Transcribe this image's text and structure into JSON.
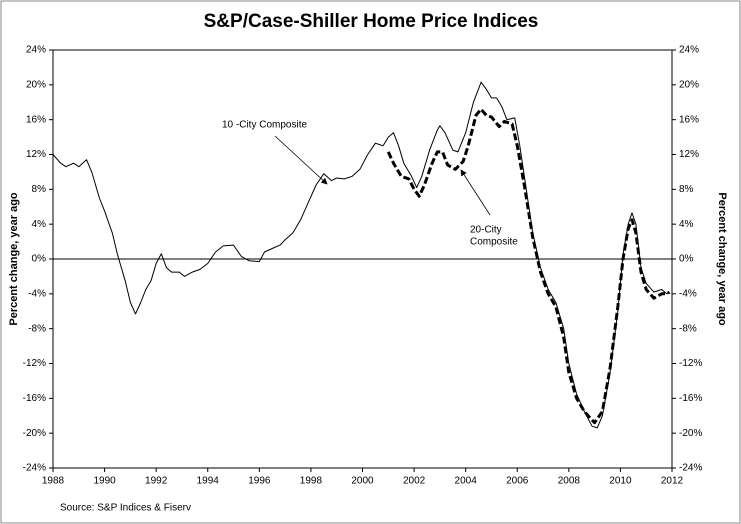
{
  "chart_data": {
    "type": "line",
    "title": "S&P/Case-Shiller Home Price Indices",
    "ylabel": "Percent change, year ago",
    "y2label": "Percent change, year ago",
    "source": "Source: S&P Indices & Fiserv",
    "annotations": [
      {
        "text": [
          "10 -City Composite"
        ]
      },
      {
        "text": [
          "20-City",
          "Composite"
        ]
      }
    ],
    "xlim": [
      1988,
      2012
    ],
    "xticks": [
      1988,
      1990,
      1992,
      1994,
      1996,
      1998,
      2000,
      2002,
      2004,
      2006,
      2008,
      2010,
      2012
    ],
    "ylim": [
      -24,
      24
    ],
    "yticks": [
      {
        "value": 24,
        "label": "24%"
      },
      {
        "value": 20,
        "label": "20%"
      },
      {
        "value": 16,
        "label": "16%"
      },
      {
        "value": 12,
        "label": "12%"
      },
      {
        "value": 8,
        "label": "8%"
      },
      {
        "value": 4,
        "label": "4%"
      },
      {
        "value": 0,
        "label": "0%"
      },
      {
        "value": -4,
        "label": "-4%"
      },
      {
        "value": -8,
        "label": "-8%"
      },
      {
        "value": -12,
        "label": "-12%"
      },
      {
        "value": -16,
        "label": "-16%"
      },
      {
        "value": -20,
        "label": "-20%"
      },
      {
        "value": -24,
        "label": "-24%"
      }
    ],
    "y2lim": [
      -24,
      24
    ],
    "y2ticks": [
      {
        "value": 24,
        "label": "24%"
      },
      {
        "value": 20,
        "label": "20%"
      },
      {
        "value": 16,
        "label": "16%"
      },
      {
        "value": 12,
        "label": "12%"
      },
      {
        "value": 8,
        "label": "8%"
      },
      {
        "value": 4,
        "label": "4%"
      },
      {
        "value": 0,
        "label": "0%"
      },
      {
        "value": -4,
        "label": "-4%"
      },
      {
        "value": -8,
        "label": "-8%"
      },
      {
        "value": -12,
        "label": "-12%"
      },
      {
        "value": -16,
        "label": "-16%"
      },
      {
        "value": -20,
        "label": "-20%"
      },
      {
        "value": -24,
        "label": "-24%"
      }
    ],
    "zero_line": true,
    "series": [
      {
        "name": "10 -City Composite",
        "color": "#000000",
        "dashed": false,
        "x": [
          1988.0,
          1988.3,
          1988.5,
          1988.8,
          1989.0,
          1989.3,
          1989.5,
          1989.8,
          1990.0,
          1990.3,
          1990.5,
          1990.8,
          1991.0,
          1991.2,
          1991.4,
          1991.6,
          1991.8,
          1992.0,
          1992.2,
          1992.4,
          1992.6,
          1992.9,
          1993.1,
          1993.4,
          1993.7,
          1994.0,
          1994.3,
          1994.6,
          1995.0,
          1995.3,
          1995.6,
          1996.0,
          1996.2,
          1996.5,
          1996.8,
          1997.0,
          1997.3,
          1997.6,
          1997.9,
          1998.2,
          1998.5,
          1998.8,
          1999.0,
          1999.3,
          1999.6,
          1999.9,
          2000.2,
          2000.5,
          2000.8,
          2001.0,
          2001.2,
          2001.4,
          2001.6,
          2001.9,
          2002.1,
          2002.3,
          2002.6,
          2002.9,
          2003.0,
          2003.2,
          2003.5,
          2003.7,
          2004.0,
          2004.3,
          2004.6,
          2004.8,
          2005.0,
          2005.2,
          2005.4,
          2005.6,
          2005.9,
          2006.1,
          2006.3,
          2006.6,
          2006.9,
          2007.2,
          2007.5,
          2007.8,
          2008.0,
          2008.3,
          2008.6,
          2008.9,
          2009.1,
          2009.3,
          2009.6,
          2009.9,
          2010.1,
          2010.3,
          2010.45,
          2010.6,
          2010.8,
          2011.0,
          2011.3,
          2011.6,
          2011.8,
          2011.9
        ],
        "values": [
          12,
          11,
          10.6,
          11,
          10.6,
          11.4,
          10,
          7,
          5.5,
          3,
          0.5,
          -2.5,
          -5,
          -6.3,
          -5,
          -3.5,
          -2.5,
          -0.5,
          0.6,
          -1,
          -1.5,
          -1.5,
          -2,
          -1.5,
          -1.2,
          -0.5,
          0.8,
          1.5,
          1.6,
          0.3,
          -0.2,
          -0.3,
          0.8,
          1.2,
          1.6,
          2.2,
          3,
          4.5,
          6.5,
          8.5,
          9.8,
          9.0,
          9.3,
          9.2,
          9.5,
          10.3,
          12,
          13.3,
          13,
          14,
          14.5,
          13,
          11,
          9.5,
          8.2,
          9.5,
          12.5,
          14.8,
          15.3,
          14.5,
          12.5,
          12.3,
          14.5,
          18,
          20.3,
          19.5,
          18.5,
          18.5,
          17.5,
          16,
          16.2,
          13,
          9,
          3,
          -1,
          -3.5,
          -5,
          -8,
          -12,
          -15.5,
          -17.5,
          -19.2,
          -19.4,
          -18,
          -13,
          -6,
          0.5,
          4,
          5.3,
          4,
          -1,
          -2.8,
          -3.8,
          -3.5,
          -4,
          -3.8
        ]
      },
      {
        "name": "20-City Composite",
        "color": "#000000",
        "dashed": true,
        "x": [
          2001.0,
          2001.2,
          2001.5,
          2001.8,
          2002.0,
          2002.2,
          2002.4,
          2002.7,
          2002.9,
          2003.1,
          2003.3,
          2003.6,
          2003.9,
          2004.1,
          2004.4,
          2004.6,
          2004.8,
          2005.0,
          2005.3,
          2005.5,
          2005.8,
          2006.0,
          2006.3,
          2006.6,
          2006.9,
          2007.2,
          2007.5,
          2007.8,
          2008.0,
          2008.3,
          2008.6,
          2008.9,
          2009.0,
          2009.3,
          2009.6,
          2009.9,
          2010.1,
          2010.3,
          2010.45,
          2010.6,
          2010.8,
          2011.0,
          2011.3,
          2011.6,
          2011.8,
          2011.9
        ],
        "values": [
          12.3,
          11,
          9.5,
          9.2,
          8,
          7.2,
          8.5,
          11,
          12.3,
          12.3,
          10.8,
          10.3,
          11.2,
          13,
          16.5,
          17.2,
          16.5,
          16.3,
          15.2,
          15.8,
          15.5,
          13,
          8,
          2.5,
          -1.5,
          -4,
          -5.5,
          -9,
          -13,
          -16,
          -17.5,
          -18.5,
          -18.8,
          -17.5,
          -12.5,
          -5.5,
          0,
          3.5,
          4.5,
          3,
          -1.5,
          -3.5,
          -4.5,
          -4,
          -4,
          -3.8
        ]
      }
    ]
  }
}
